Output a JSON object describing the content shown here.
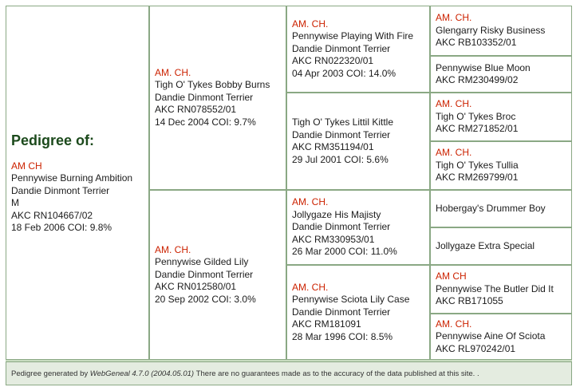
{
  "subject": {
    "heading": "Pedigree of:",
    "title": "AM CH",
    "name": "Pennywise Burning Ambition",
    "breed": "Dandie Dinmont Terrier",
    "sex": "M",
    "reg": "AKC RN104667/02",
    "info": "18 Feb 2006 COI: 9.8%"
  },
  "sire": {
    "title": "AM. CH.",
    "name": "Tigh O' Tykes Bobby Burns",
    "breed": "Dandie Dinmont Terrier",
    "reg": "AKC RN078552/01",
    "info": "14 Dec 2004 COI: 9.7%"
  },
  "dam": {
    "title": "AM. CH.",
    "name": "Pennywise Gilded Lily",
    "breed": "Dandie Dinmont Terrier",
    "reg": "AKC RN012580/01",
    "info": "20 Sep 2002 COI: 3.0%"
  },
  "ss": {
    "title": "AM. CH.",
    "name": "Pennywise Playing With Fire",
    "breed": "Dandie Dinmont Terrier",
    "reg": "AKC RN022320/01",
    "info": "04 Apr 2003 COI: 14.0%"
  },
  "sd": {
    "name": "Tigh O' Tykes Littil Kittle",
    "breed": "Dandie Dinmont Terrier",
    "reg": "AKC RM351194/01",
    "info": "29 Jul 2001 COI: 5.6%"
  },
  "ds": {
    "title": "AM. CH.",
    "name": "Jollygaze His Majisty",
    "breed": "Dandie Dinmont Terrier",
    "reg": "AKC RM330953/01",
    "info": "26 Mar 2000 COI: 11.0%"
  },
  "dd": {
    "title": "AM. CH.",
    "name": "Pennywise Sciota Lily Case",
    "breed": "Dandie Dinmont Terrier",
    "reg": "AKC RM181091",
    "info": "28 Mar 1996 COI: 8.5%"
  },
  "sss": {
    "title": "AM. CH.",
    "name": "Glengarry Risky Business",
    "reg": "AKC RB103352/01"
  },
  "ssd": {
    "name": "Pennywise Blue Moon",
    "reg": "AKC RM230499/02"
  },
  "sds": {
    "title": "AM. CH.",
    "name": "Tigh O' Tykes Broc",
    "reg": "AKC RM271852/01"
  },
  "sdd": {
    "title": "AM. CH.",
    "name": "Tigh O' Tykes Tullia",
    "reg": "AKC RM269799/01"
  },
  "dss": {
    "name": "Hobergay's Drummer Boy"
  },
  "dsd": {
    "name": "Jollygaze Extra Special"
  },
  "dds": {
    "title": "AM CH",
    "name": "Pennywise The Butler Did It",
    "reg": "AKC RB171055"
  },
  "ddd": {
    "title": "AM. CH.",
    "name": "Pennywise Aine Of Sciota",
    "reg": "AKC RL970242/01"
  },
  "footer": {
    "prefix": "Pedigree generated by",
    "software": "WebGeneal",
    "version": "4.7.0 (2004.05.01)",
    "disclaimer": "There are no guarantees made as to the accuracy of the data published at this site. ."
  }
}
